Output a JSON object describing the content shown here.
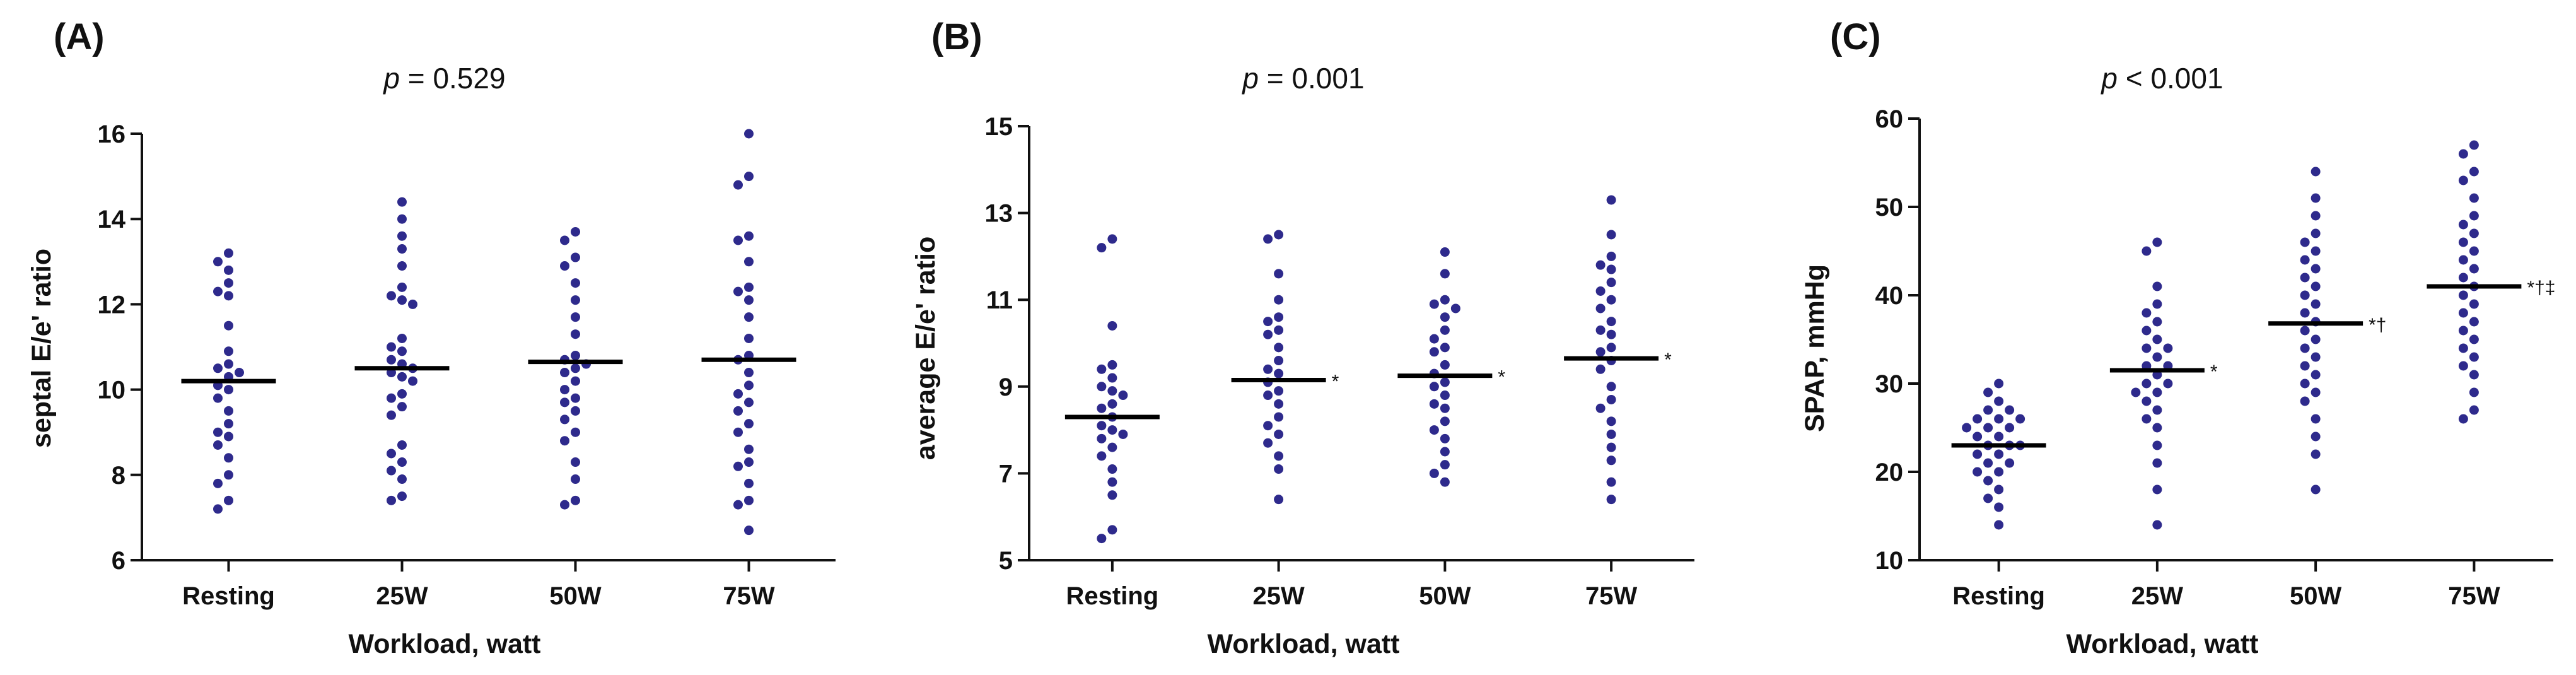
{
  "chart_data": [
    {
      "type": "scatter",
      "panel_label": "(A)",
      "p_text_italic": "p",
      "p_text_rest": " = 0.529",
      "ylabel": "septal E/e' ratio",
      "xlabel": "Workload, watt",
      "categories": [
        "Resting",
        "25W",
        "50W",
        "75W"
      ],
      "ylim": [
        6,
        16
      ],
      "yticks": [
        "6",
        "8",
        "10",
        "12",
        "14",
        "16"
      ],
      "ytick_values": [
        6,
        8,
        10,
        12,
        14,
        16
      ],
      "means": [
        10.2,
        10.5,
        10.65,
        10.7
      ],
      "significance": [
        "",
        "",
        "",
        ""
      ],
      "points": [
        [
          13.2,
          13.0,
          12.8,
          12.5,
          12.3,
          12.2,
          11.5,
          10.9,
          10.6,
          10.5,
          10.4,
          10.3,
          10.1,
          10.0,
          9.8,
          9.5,
          9.2,
          9.0,
          8.9,
          8.7,
          8.4,
          8.0,
          7.8,
          7.4,
          7.2
        ],
        [
          14.4,
          14.0,
          13.6,
          13.3,
          12.9,
          12.4,
          12.2,
          12.1,
          12.0,
          11.2,
          11.0,
          10.9,
          10.7,
          10.6,
          10.5,
          10.4,
          10.3,
          10.2,
          9.9,
          9.8,
          9.6,
          9.4,
          8.7,
          8.5,
          8.3,
          8.1,
          7.9,
          7.5,
          7.4
        ],
        [
          13.7,
          13.5,
          13.1,
          12.9,
          12.5,
          12.1,
          11.7,
          11.3,
          10.8,
          10.7,
          10.6,
          10.5,
          10.4,
          10.2,
          10.0,
          9.8,
          9.7,
          9.5,
          9.3,
          9.0,
          8.8,
          8.3,
          7.9,
          7.4,
          7.3
        ],
        [
          16.0,
          15.0,
          14.8,
          13.6,
          13.5,
          13.0,
          12.4,
          12.3,
          12.1,
          11.7,
          11.2,
          10.8,
          10.7,
          10.4,
          10.1,
          9.9,
          9.7,
          9.5,
          9.2,
          9.0,
          8.6,
          8.3,
          8.2,
          7.8,
          7.4,
          7.3,
          6.7
        ]
      ]
    },
    {
      "type": "scatter",
      "panel_label": "(B)",
      "p_text_italic": "p",
      "p_text_rest": " = 0.001",
      "ylabel": "average E/e' ratio",
      "xlabel": "Workload, watt",
      "categories": [
        "Resting",
        "25W",
        "50W",
        "75W"
      ],
      "ylim": [
        5,
        15
      ],
      "yticks": [
        "5",
        "7",
        "9",
        "11",
        "13",
        "15"
      ],
      "ytick_values": [
        5,
        7,
        9,
        11,
        13,
        15
      ],
      "means": [
        8.3,
        9.15,
        9.25,
        9.65
      ],
      "significance": [
        "",
        "*",
        "*",
        "*"
      ],
      "points": [
        [
          12.4,
          12.2,
          10.4,
          9.5,
          9.4,
          9.2,
          9.0,
          8.9,
          8.8,
          8.6,
          8.5,
          8.3,
          8.1,
          8.0,
          7.9,
          7.8,
          7.6,
          7.4,
          7.1,
          6.8,
          6.5,
          5.7,
          5.5
        ],
        [
          12.5,
          12.4,
          11.6,
          11.0,
          10.6,
          10.5,
          10.3,
          10.2,
          9.9,
          9.6,
          9.4,
          9.3,
          9.1,
          8.9,
          8.8,
          8.6,
          8.3,
          8.1,
          7.9,
          7.7,
          7.4,
          7.1,
          6.4
        ],
        [
          12.1,
          11.6,
          11.0,
          10.9,
          10.8,
          10.6,
          10.3,
          10.1,
          9.9,
          9.8,
          9.5,
          9.3,
          9.1,
          9.0,
          8.8,
          8.6,
          8.5,
          8.2,
          8.0,
          7.8,
          7.5,
          7.2,
          7.0,
          6.8
        ],
        [
          13.3,
          12.5,
          12.0,
          11.8,
          11.7,
          11.4,
          11.2,
          11.0,
          10.8,
          10.5,
          10.3,
          10.2,
          9.9,
          9.8,
          9.6,
          9.4,
          9.0,
          8.7,
          8.5,
          8.2,
          7.9,
          7.6,
          7.3,
          6.8,
          6.4
        ]
      ]
    },
    {
      "type": "scatter",
      "panel_label": "(C)",
      "p_text_italic": "p",
      "p_text_rest": " < 0.001",
      "ylabel": "SPAP, mmHg",
      "xlabel": "Workload, watt",
      "categories": [
        "Resting",
        "25W",
        "50W",
        "75W"
      ],
      "ylim": [
        10,
        60
      ],
      "yticks": [
        "10",
        "20",
        "30",
        "40",
        "50",
        "60"
      ],
      "ytick_values": [
        10,
        20,
        30,
        40,
        50,
        60
      ],
      "means": [
        23,
        31.5,
        36.8,
        41
      ],
      "significance": [
        "",
        "*",
        "*†",
        "*†‡"
      ],
      "points": [
        [
          30,
          29,
          28,
          27,
          27,
          26,
          26,
          26,
          25,
          25,
          25,
          24,
          24,
          23,
          23,
          23,
          22,
          22,
          21,
          21,
          20,
          20,
          19,
          18,
          17,
          16,
          14
        ],
        [
          46,
          45,
          41,
          39,
          38,
          37,
          36,
          35,
          34,
          34,
          33,
          32,
          32,
          31,
          30,
          30,
          29,
          29,
          28,
          27,
          26,
          25,
          23,
          21,
          18,
          14
        ],
        [
          54,
          51,
          49,
          47,
          46,
          45,
          44,
          43,
          42,
          41,
          40,
          39,
          38,
          37,
          36,
          35,
          34,
          33,
          32,
          31,
          30,
          29,
          28,
          26,
          24,
          22,
          18
        ],
        [
          57,
          56,
          54,
          53,
          51,
          49,
          48,
          47,
          46,
          45,
          44,
          43,
          42,
          41,
          40,
          39,
          38,
          37,
          36,
          35,
          34,
          33,
          32,
          31,
          29,
          27,
          26
        ]
      ]
    }
  ],
  "colors": {
    "dot": "#2E2A8C",
    "mean_line": "#000000",
    "axis": "#111111"
  }
}
